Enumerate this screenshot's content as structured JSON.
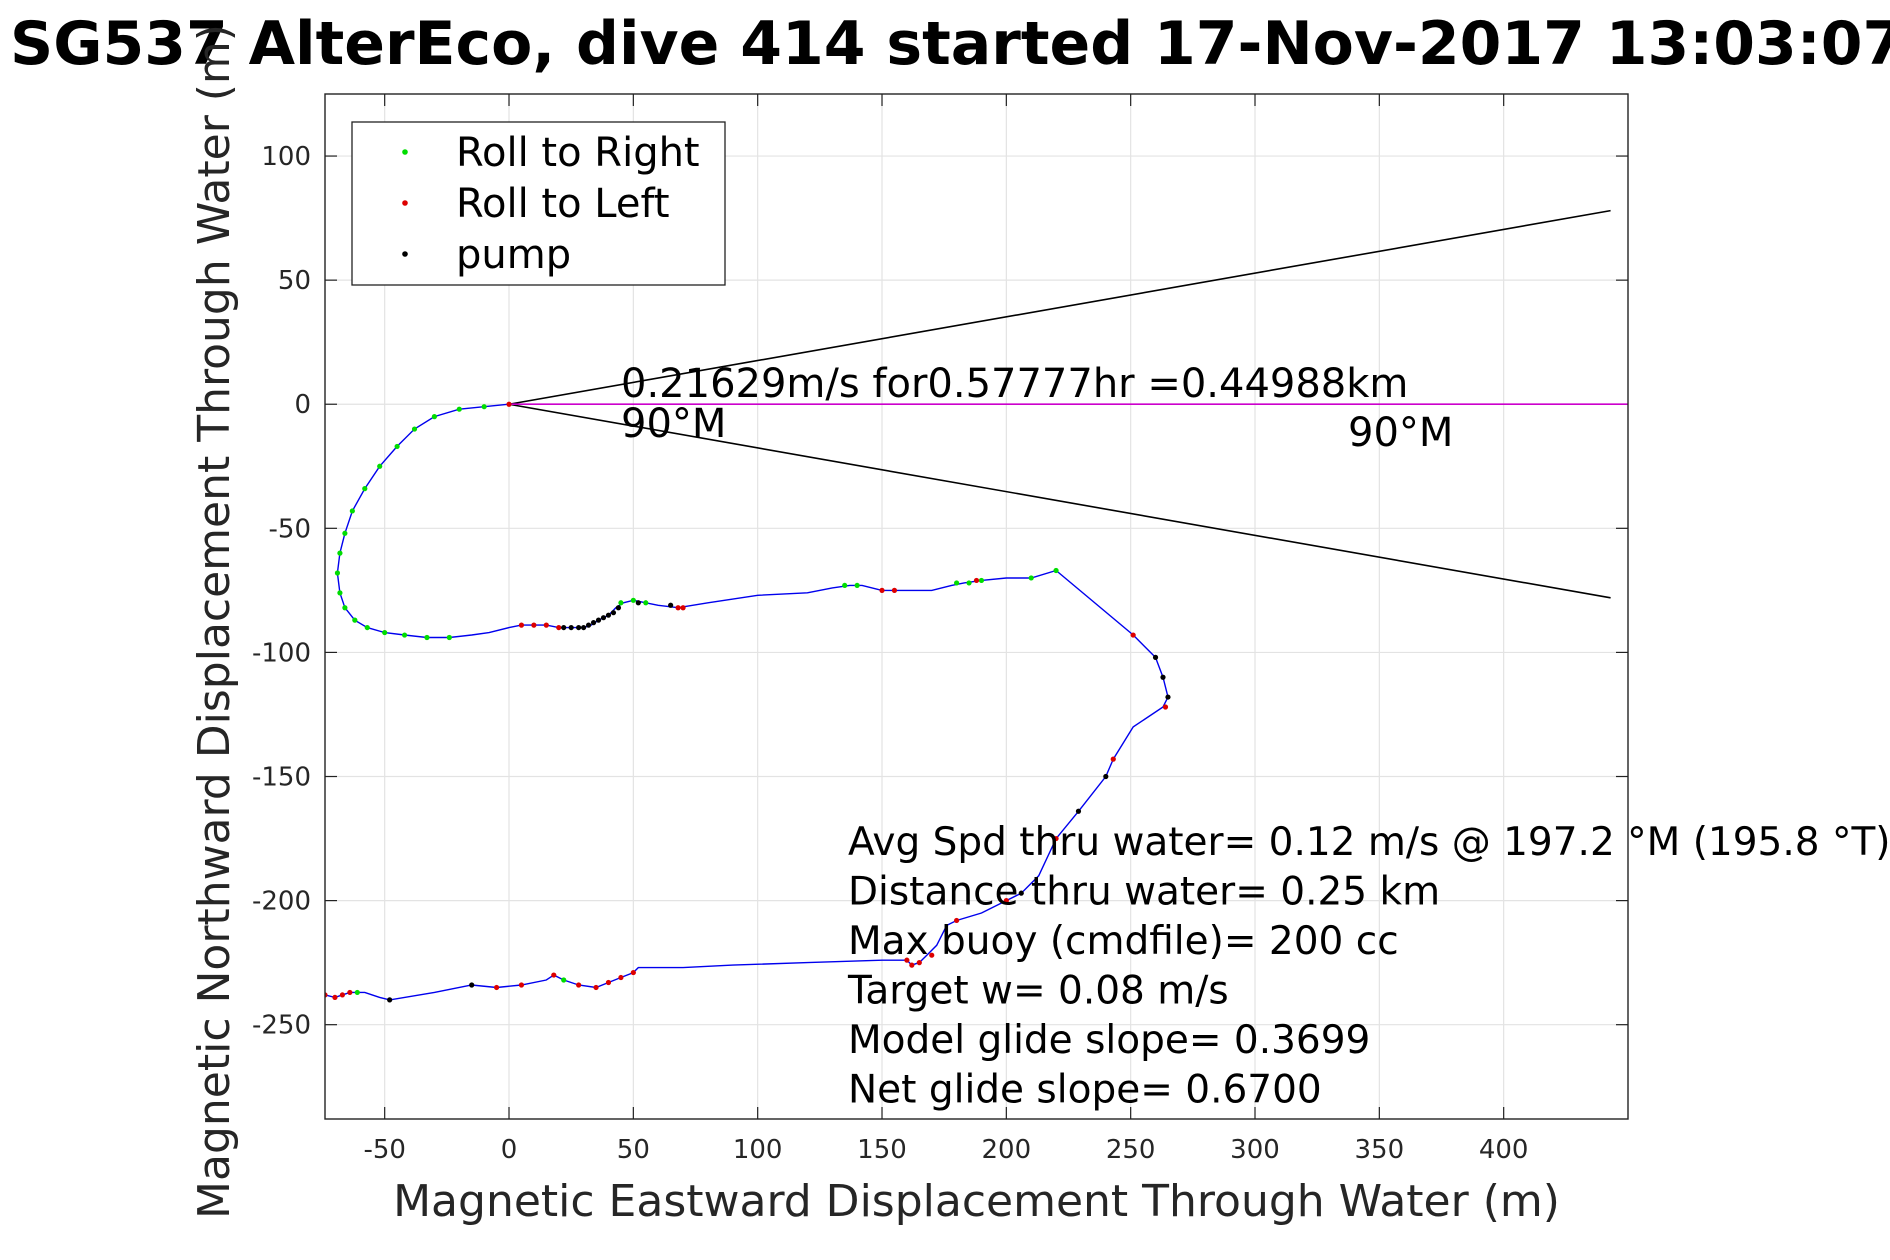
{
  "chart_data": {
    "type": "scatter",
    "title": "SG537 AlterEco, dive 414 started 17-Nov-2017 13:03:07",
    "xlabel": "Magnetic Eastward Displacement Through Water (m)",
    "ylabel": "Magnetic Northward Displacement Through Water (m)",
    "xlim": [
      -74,
      450
    ],
    "ylim": [
      -288,
      125
    ],
    "xticks": [
      -50,
      0,
      50,
      100,
      150,
      200,
      250,
      300,
      350,
      400
    ],
    "yticks": [
      -250,
      -200,
      -150,
      -100,
      -50,
      0,
      50,
      100
    ],
    "grid": true,
    "legend_position": "top-left",
    "legend": [
      {
        "label": "Roll to Right",
        "color": "#00dd00"
      },
      {
        "label": "Roll to Left",
        "color": "#dd0000"
      },
      {
        "label": "pump",
        "color": "#000000"
      }
    ],
    "colors": {
      "track": "#0000ee",
      "cone": "#000000",
      "heading": "#cc00cc"
    },
    "track": {
      "x": [
        0,
        -10,
        -20,
        -30,
        -38,
        -45,
        -52,
        -58,
        -63,
        -66,
        -68,
        -69,
        -68,
        -66,
        -62,
        -57,
        -50,
        -42,
        -33,
        -24,
        -15,
        -8,
        0,
        5,
        10,
        15,
        20,
        25,
        30,
        33,
        36,
        40,
        43,
        46,
        50,
        55,
        60,
        68,
        80,
        100,
        120,
        130,
        137,
        142,
        150,
        160,
        170,
        178,
        183,
        190,
        200,
        210,
        220,
        251,
        260,
        263,
        265,
        263,
        251,
        243,
        240,
        229,
        220,
        213,
        206,
        200,
        190,
        180,
        176,
        172,
        168,
        165,
        162,
        160,
        150,
        120,
        90,
        70,
        52,
        50,
        45,
        40,
        35,
        28,
        22,
        18,
        15,
        5,
        -5,
        -15,
        -30,
        -48,
        -52,
        -55,
        -58,
        -61,
        -64,
        -67,
        -70,
        -74
      ],
      "y": [
        0,
        -1,
        -2,
        -5,
        -10,
        -17,
        -25,
        -34,
        -43,
        -52,
        -60,
        -68,
        -76,
        -82,
        -87,
        -90,
        -92,
        -93,
        -94,
        -94,
        -93,
        -92,
        -90,
        -89,
        -89,
        -89,
        -90,
        -90,
        -90,
        -89,
        -87,
        -85,
        -82,
        -80,
        -79,
        -80,
        -81,
        -82,
        -80,
        -77,
        -76,
        -74,
        -73,
        -73,
        -75,
        -75,
        -75,
        -73,
        -72,
        -71,
        -70,
        -70,
        -67,
        -93,
        -102,
        -110,
        -118,
        -122,
        -130,
        -143,
        -150,
        -164,
        -175,
        -190,
        -197,
        -200,
        -205,
        -208,
        -210,
        -218,
        -222,
        -225,
        -226,
        -224,
        -224,
        -225,
        -226,
        -227,
        -227,
        -229,
        -231,
        -233,
        -235,
        -234,
        -232,
        -230,
        -232,
        -234,
        -235,
        -234,
        -237,
        -240,
        -239,
        -238,
        -237,
        -237,
        -237,
        -238,
        -239,
        -238
      ]
    },
    "series": [
      {
        "name": "Roll to Right",
        "color": "#00dd00",
        "x": [
          -10,
          -20,
          -30,
          -38,
          -45,
          -52,
          -58,
          -63,
          -66,
          -68,
          -69,
          -68,
          -66,
          -62,
          -57,
          -50,
          -42,
          -33,
          -24,
          45,
          50,
          55,
          135,
          140,
          180,
          185,
          190,
          210,
          220,
          -61,
          22
        ],
        "y": [
          -1,
          -2,
          -5,
          -10,
          -17,
          -25,
          -34,
          -43,
          -52,
          -60,
          -68,
          -76,
          -82,
          -87,
          -90,
          -92,
          -93,
          -94,
          -94,
          -80,
          -79,
          -80,
          -73,
          -73,
          -72,
          -72,
          -71,
          -70,
          -67,
          -237,
          -232
        ]
      },
      {
        "name": "Roll to Left",
        "color": "#dd0000",
        "x": [
          5,
          10,
          15,
          20,
          68,
          70,
          150,
          155,
          188,
          251,
          264,
          243,
          220,
          200,
          180,
          170,
          165,
          162,
          160,
          50,
          45,
          40,
          35,
          28,
          18,
          5,
          -5,
          -64,
          -67,
          -70,
          -74,
          0
        ],
        "y": [
          -89,
          -89,
          -89,
          -90,
          -82,
          -82,
          -75,
          -75,
          -71,
          -93,
          -122,
          -143,
          -175,
          -200,
          -208,
          -222,
          -225,
          -226,
          -224,
          -229,
          -231,
          -233,
          -235,
          -234,
          -230,
          -234,
          -235,
          -237,
          -238,
          -239,
          -238,
          0
        ]
      },
      {
        "name": "pump",
        "color": "#000000",
        "x": [
          22,
          25,
          28,
          30,
          32,
          34,
          36,
          38,
          40,
          42,
          44,
          52,
          65,
          260,
          263,
          265,
          240,
          229,
          206,
          -48,
          -15
        ],
        "y": [
          -90,
          -90,
          -90,
          -90,
          -89,
          -88,
          -87,
          -86,
          -85,
          -84,
          -82,
          -80,
          -81,
          -102,
          -110,
          -118,
          -150,
          -164,
          -197,
          -240,
          -234
        ]
      }
    ],
    "cone": {
      "apex": [
        0,
        0
      ],
      "end_x": 443,
      "end_y": [
        78,
        -78
      ]
    },
    "heading_line": {
      "x": [
        0,
        450
      ],
      "y": [
        0,
        0
      ]
    },
    "annotations": {
      "current": "0.21629m/s for0.57777hr =0.44988km",
      "heading_near": "90°M",
      "heading_far": "90°M",
      "stats": [
        "Avg Spd thru water=  0.12 m/s @ 197.2 °M (195.8 °T)",
        "Distance thru water=  0.25 km",
        "Max buoy (cmdfile)= 200 cc",
        "Target w= 0.08 m/s",
        "Model glide slope= 0.3699",
        "Net glide slope= 0.6700"
      ]
    }
  }
}
